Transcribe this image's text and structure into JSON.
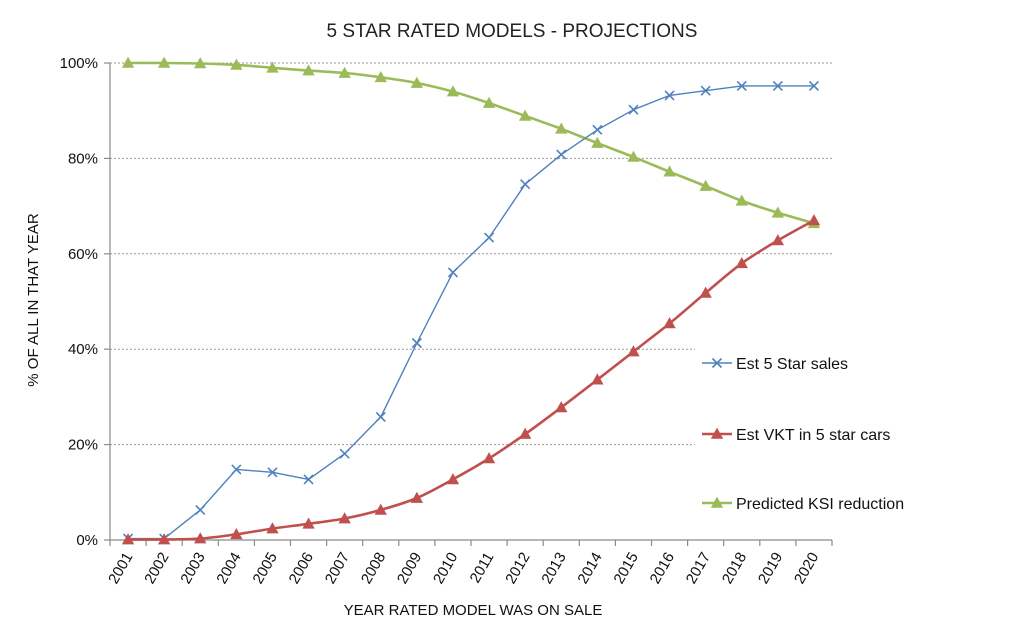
{
  "chart_data": {
    "type": "line",
    "title": "5 STAR RATED MODELS - PROJECTIONS",
    "xlabel": "YEAR RATED MODEL WAS ON SALE",
    "ylabel": "% OF ALL IN THAT YEAR",
    "ylim": [
      0,
      100
    ],
    "yticks": [
      "0%",
      "20%",
      "40%",
      "60%",
      "80%",
      "100%"
    ],
    "ytick_values": [
      0,
      20,
      40,
      60,
      80,
      100
    ],
    "grid": true,
    "legend": "right",
    "categories": [
      "2001",
      "2002",
      "2003",
      "2004",
      "2005",
      "2006",
      "2007",
      "2008",
      "2009",
      "2010",
      "2011",
      "2012",
      "2013",
      "2014",
      "2015",
      "2016",
      "2017",
      "2018",
      "2019",
      "2020"
    ],
    "series": [
      {
        "name": "Est 5 Star sales",
        "color": "#4f81bd",
        "marker": "x",
        "values": [
          0.3,
          0.3,
          6.3,
          14.8,
          14.2,
          12.7,
          18.1,
          25.8,
          41.3,
          56.1,
          63.4,
          74.6,
          80.8,
          86.0,
          90.2,
          93.2,
          94.2,
          95.2,
          95.2,
          95.2
        ]
      },
      {
        "name": "Est VKT in 5 star cars",
        "color": "#c0504d",
        "marker": "triangle",
        "values": [
          0.1,
          0.1,
          0.3,
          1.2,
          2.4,
          3.4,
          4.5,
          6.3,
          8.8,
          12.7,
          17.1,
          22.2,
          27.8,
          33.6,
          39.5,
          45.4,
          51.8,
          58.0,
          62.8,
          67.0
        ]
      },
      {
        "name": "Predicted KSI reduction",
        "color": "#9bbb59",
        "marker": "triangle",
        "values": [
          100.0,
          100.0,
          99.9,
          99.6,
          99.0,
          98.4,
          97.9,
          97.0,
          95.8,
          94.0,
          91.6,
          88.9,
          86.2,
          83.2,
          80.3,
          77.2,
          74.2,
          71.1,
          68.6,
          66.4
        ]
      }
    ]
  }
}
